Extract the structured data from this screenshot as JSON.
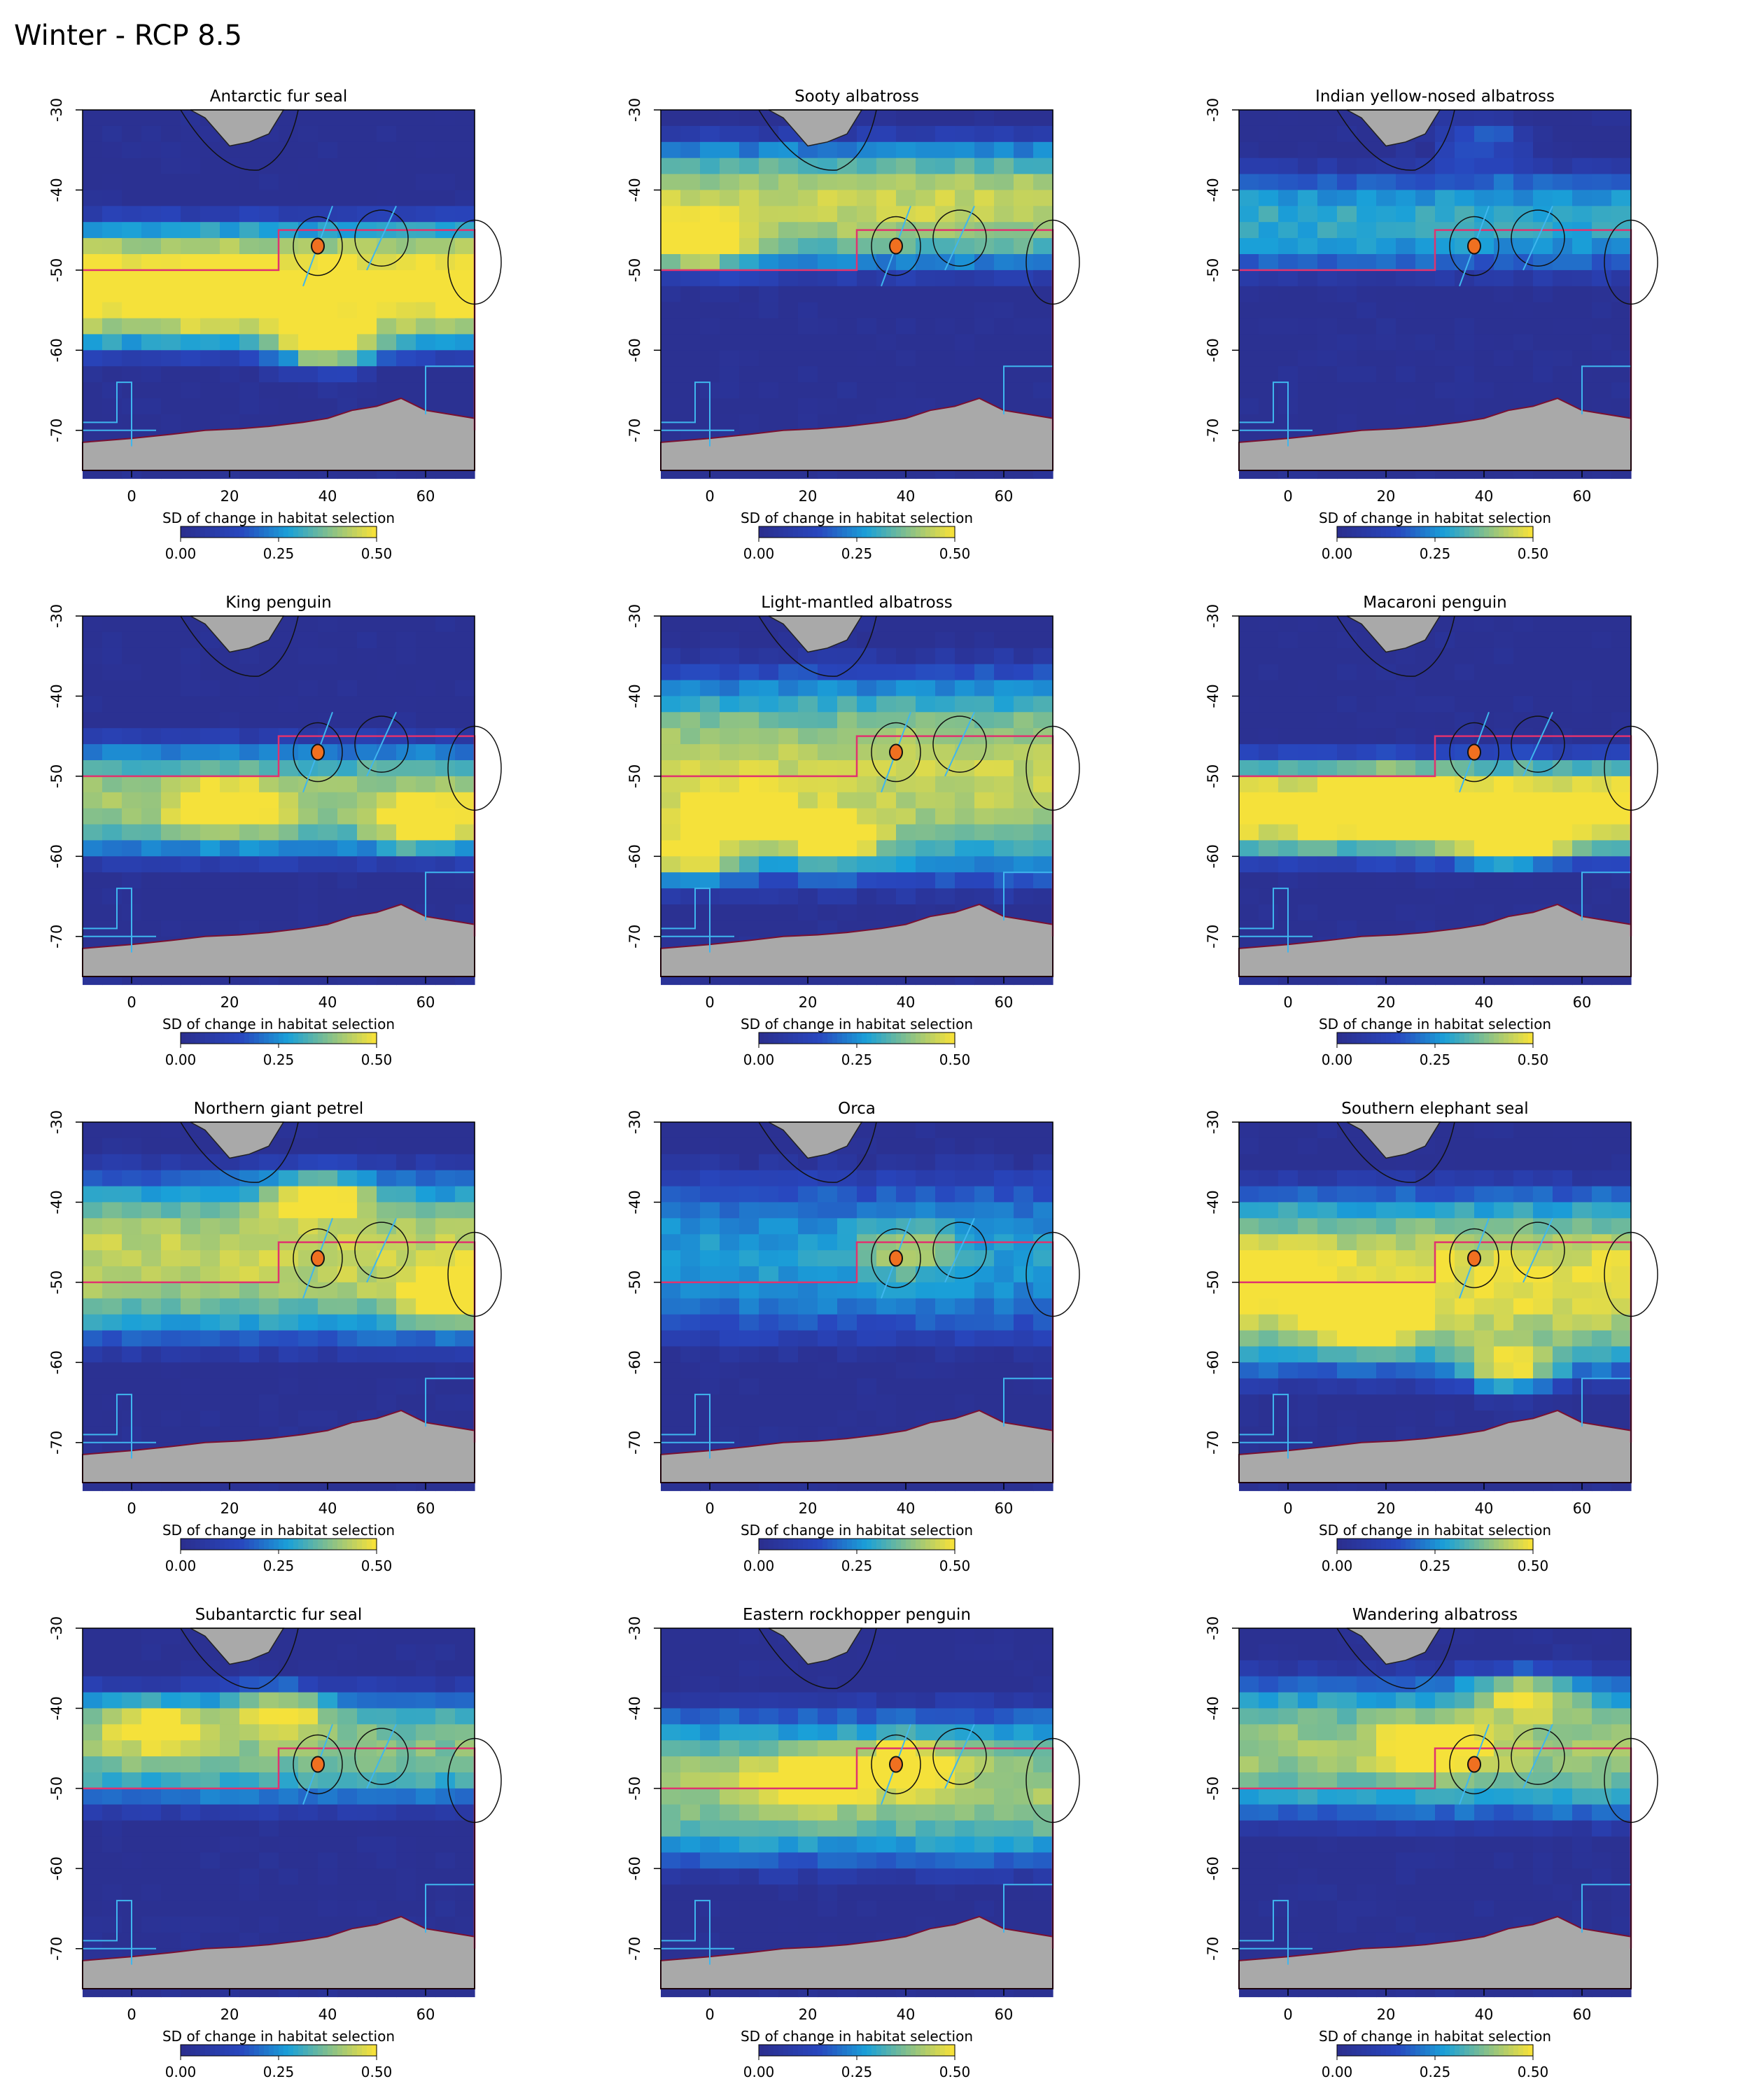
{
  "page": {
    "title": "Winter - RCP 8.5"
  },
  "colors": {
    "low": "#2b2f8f",
    "mid": "#1aa0d8",
    "high": "#f5e13a",
    "land": "#a9a9a9",
    "boundary": "#e0336f",
    "mpa": "#3fb6ee",
    "marker": "#f07020"
  },
  "chart_data": [
    {
      "type": "heatmap",
      "title": "Antarctic fur seal",
      "xlim": [
        -10,
        70
      ],
      "ylim": [
        -75,
        -30
      ],
      "x_ticks": [
        "0",
        "20",
        "40",
        "60"
      ],
      "y_ticks": [
        "-30",
        "-40",
        "-50",
        "-60",
        "-70"
      ],
      "legend_label": "SD of change in habitat selection",
      "legend_ticks": [
        "0.00",
        "0.25",
        "0.50"
      ],
      "value_range": [
        0,
        0.5
      ],
      "band_lat": [
        -62,
        -42
      ],
      "peak_value": 0.4,
      "hotspots": [
        [
          18,
          -53
        ],
        [
          40,
          -60
        ]
      ]
    },
    {
      "type": "heatmap",
      "title": "Sooty albatross",
      "xlim": [
        -10,
        70
      ],
      "ylim": [
        -75,
        -30
      ],
      "x_ticks": [
        "0",
        "20",
        "40",
        "60"
      ],
      "y_ticks": [
        "-30",
        "-40",
        "-50",
        "-60",
        "-70"
      ],
      "legend_label": "SD of change in habitat selection",
      "legend_ticks": [
        "0.00",
        "0.25",
        "0.50"
      ],
      "value_range": [
        0,
        0.5
      ],
      "band_lat": [
        -52,
        -32
      ],
      "peak_value": 0.33,
      "hotspots": [
        [
          -2,
          -47
        ]
      ]
    },
    {
      "type": "heatmap",
      "title": "Indian yellow-nosed albatross",
      "xlim": [
        -10,
        70
      ],
      "ylim": [
        -75,
        -30
      ],
      "x_ticks": [
        "0",
        "20",
        "40",
        "60"
      ],
      "y_ticks": [
        "-30",
        "-40",
        "-50",
        "-60",
        "-70"
      ],
      "legend_label": "SD of change in habitat selection",
      "legend_ticks": [
        "0.00",
        "0.25",
        "0.50"
      ],
      "value_range": [
        0,
        0.5
      ],
      "band_lat": [
        -52,
        -36
      ],
      "peak_value": 0.22,
      "hotspots": [
        [
          40,
          -34
        ]
      ]
    },
    {
      "type": "heatmap",
      "title": "King penguin",
      "xlim": [
        -10,
        70
      ],
      "ylim": [
        -75,
        -30
      ],
      "x_ticks": [
        "0",
        "20",
        "40",
        "60"
      ],
      "y_ticks": [
        "-30",
        "-40",
        "-50",
        "-60",
        "-70"
      ],
      "legend_label": "SD of change in habitat selection",
      "legend_ticks": [
        "0.00",
        "0.25",
        "0.50"
      ],
      "value_range": [
        0,
        0.5
      ],
      "band_lat": [
        -62,
        -44
      ],
      "peak_value": 0.3,
      "hotspots": [
        [
          20,
          -54
        ],
        [
          60,
          -56
        ]
      ]
    },
    {
      "type": "heatmap",
      "title": "Light-mantled albatross",
      "xlim": [
        -10,
        70
      ],
      "ylim": [
        -75,
        -30
      ],
      "x_ticks": [
        "0",
        "20",
        "40",
        "60"
      ],
      "y_ticks": [
        "-30",
        "-40",
        "-50",
        "-60",
        "-70"
      ],
      "legend_label": "SD of change in habitat selection",
      "legend_ticks": [
        "0.00",
        "0.25",
        "0.50"
      ],
      "value_range": [
        0,
        0.5
      ],
      "band_lat": [
        -66,
        -34
      ],
      "peak_value": 0.33,
      "hotspots": [
        [
          5,
          -55
        ],
        [
          25,
          -58
        ],
        [
          -5,
          -60
        ]
      ]
    },
    {
      "type": "heatmap",
      "title": "Macaroni penguin",
      "xlim": [
        -10,
        70
      ],
      "ylim": [
        -75,
        -30
      ],
      "x_ticks": [
        "0",
        "20",
        "40",
        "60"
      ],
      "y_ticks": [
        "-30",
        "-40",
        "-50",
        "-60",
        "-70"
      ],
      "legend_label": "SD of change in habitat selection",
      "legend_ticks": [
        "0.00",
        "0.25",
        "0.50"
      ],
      "value_range": [
        0,
        0.5
      ],
      "band_lat": [
        -62,
        -46
      ],
      "peak_value": 0.4,
      "hotspots": [
        [
          22,
          -53
        ],
        [
          45,
          -58
        ]
      ]
    },
    {
      "type": "heatmap",
      "title": "Northern giant petrel",
      "xlim": [
        -10,
        70
      ],
      "ylim": [
        -75,
        -30
      ],
      "x_ticks": [
        "0",
        "20",
        "40",
        "60"
      ],
      "y_ticks": [
        "-30",
        "-40",
        "-50",
        "-60",
        "-70"
      ],
      "legend_label": "SD of change in habitat selection",
      "legend_ticks": [
        "0.00",
        "0.25",
        "0.50"
      ],
      "value_range": [
        0,
        0.5
      ],
      "band_lat": [
        -60,
        -34
      ],
      "peak_value": 0.33,
      "hotspots": [
        [
          38,
          -39
        ],
        [
          65,
          -52
        ]
      ]
    },
    {
      "type": "heatmap",
      "title": "Orca",
      "xlim": [
        -10,
        70
      ],
      "ylim": [
        -75,
        -30
      ],
      "x_ticks": [
        "0",
        "20",
        "40",
        "60"
      ],
      "y_ticks": [
        "-30",
        "-40",
        "-50",
        "-60",
        "-70"
      ],
      "legend_label": "SD of change in habitat selection",
      "legend_ticks": [
        "0.00",
        "0.25",
        "0.50"
      ],
      "value_range": [
        0,
        0.5
      ],
      "band_lat": [
        -60,
        -34
      ],
      "peak_value": 0.2,
      "hotspots": [
        [
          40,
          -46
        ]
      ]
    },
    {
      "type": "heatmap",
      "title": "Southern elephant seal",
      "xlim": [
        -10,
        70
      ],
      "ylim": [
        -75,
        -30
      ],
      "x_ticks": [
        "0",
        "20",
        "40",
        "60"
      ],
      "y_ticks": [
        "-30",
        "-40",
        "-50",
        "-60",
        "-70"
      ],
      "legend_label": "SD of change in habitat selection",
      "legend_ticks": [
        "0.00",
        "0.25",
        "0.50"
      ],
      "value_range": [
        0,
        0.5
      ],
      "band_lat": [
        -64,
        -36
      ],
      "peak_value": 0.36,
      "hotspots": [
        [
          -8,
          -49
        ],
        [
          15,
          -55
        ],
        [
          45,
          -61
        ]
      ]
    },
    {
      "type": "heatmap",
      "title": "Subantarctic fur seal",
      "xlim": [
        -10,
        70
      ],
      "ylim": [
        -75,
        -30
      ],
      "x_ticks": [
        "0",
        "20",
        "40",
        "60"
      ],
      "y_ticks": [
        "-30",
        "-40",
        "-50",
        "-60",
        "-70"
      ],
      "legend_label": "SD of change in habitat selection",
      "legend_ticks": [
        "0.00",
        "0.25",
        "0.50"
      ],
      "value_range": [
        0,
        0.5
      ],
      "band_lat": [
        -54,
        -36
      ],
      "peak_value": 0.28,
      "hotspots": [
        [
          5,
          -42
        ],
        [
          30,
          -40
        ]
      ]
    },
    {
      "type": "heatmap",
      "title": "Eastern rockhopper penguin",
      "xlim": [
        -10,
        70
      ],
      "ylim": [
        -75,
        -30
      ],
      "x_ticks": [
        "0",
        "20",
        "40",
        "60"
      ],
      "y_ticks": [
        "-30",
        "-40",
        "-50",
        "-60",
        "-70"
      ],
      "legend_label": "SD of change in habitat selection",
      "legend_ticks": [
        "0.00",
        "0.25",
        "0.50"
      ],
      "value_range": [
        0,
        0.5
      ],
      "band_lat": [
        -62,
        -38
      ],
      "peak_value": 0.3,
      "hotspots": [
        [
          20,
          -49
        ],
        [
          40,
          -47
        ]
      ]
    },
    {
      "type": "heatmap",
      "title": "Wandering albatross",
      "xlim": [
        -10,
        70
      ],
      "ylim": [
        -75,
        -30
      ],
      "x_ticks": [
        "0",
        "20",
        "40",
        "60"
      ],
      "y_ticks": [
        "-30",
        "-40",
        "-50",
        "-60",
        "-70"
      ],
      "legend_label": "SD of change in habitat selection",
      "legend_ticks": [
        "0.00",
        "0.25",
        "0.50"
      ],
      "value_range": [
        0,
        0.5
      ],
      "band_lat": [
        -56,
        -34
      ],
      "peak_value": 0.3,
      "hotspots": [
        [
          48,
          -38
        ],
        [
          30,
          -45
        ]
      ]
    }
  ]
}
